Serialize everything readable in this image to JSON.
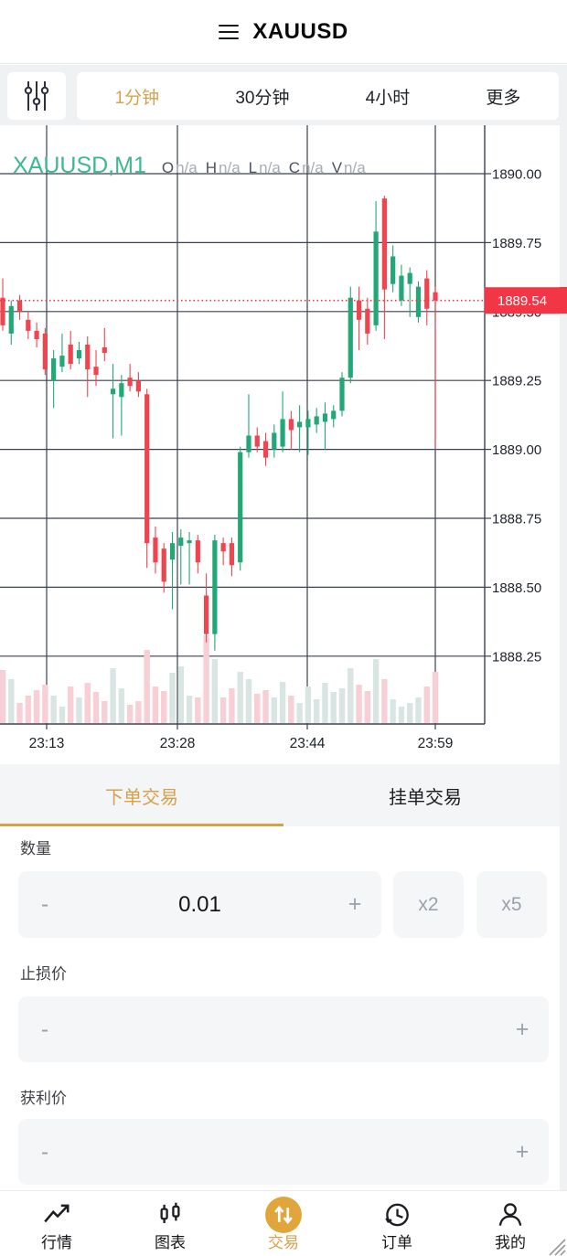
{
  "app": {
    "title": "XAUUSD",
    "menu_icon": "hamburger-menu-icon"
  },
  "colors": {
    "accent_gold": "#d7a14b",
    "nav_active_circle": "#e0a63c",
    "candle_up": "#21a876",
    "candle_down": "#f0444f",
    "volume_up": "#d9e5e3",
    "volume_down": "#f8cfd4",
    "price_line_red": "#f23645",
    "grid": "#3a4150",
    "legend_green": "#3cba8e"
  },
  "toolbar": {
    "settings_icon": "sliders-icon",
    "timeframes": [
      {
        "label": "1分钟",
        "active": true
      },
      {
        "label": "30分钟",
        "active": false
      },
      {
        "label": "4小时",
        "active": false
      },
      {
        "label": "更多",
        "active": false
      }
    ]
  },
  "chart": {
    "legend": {
      "symbol": "XAUUSD,M1",
      "ohlc": [
        {
          "key": "O",
          "value": "n/a"
        },
        {
          "key": "H",
          "value": "n/a"
        },
        {
          "key": "L",
          "value": "n/a"
        },
        {
          "key": "C",
          "value": "n/a"
        },
        {
          "key": "V",
          "value": "n/a"
        }
      ]
    },
    "price_labels": [
      "1890.00",
      "1889.75",
      "1889.50",
      "1889.25",
      "1889.00",
      "1888.75",
      "1888.50",
      "1888.25"
    ],
    "current_price_label": "1889.54",
    "time_labels": [
      "23:13",
      "23:28",
      "23:44",
      "23:59"
    ]
  },
  "chart_data": {
    "type": "candlestick",
    "symbol": "XAUUSD",
    "interval": "1 minute",
    "time_start": "23:08",
    "x_tick_labels": [
      "23:13",
      "23:28",
      "23:44",
      "23:59"
    ],
    "ylim": [
      1888.0,
      1890.18
    ],
    "y_gridlines": [
      1890.0,
      1889.75,
      1889.5,
      1889.25,
      1889.0,
      1888.75,
      1888.5,
      1888.25
    ],
    "current_price": 1889.54,
    "candles_ohlc": [
      [
        1889.55,
        1889.62,
        1889.43,
        1889.45
      ],
      [
        1889.42,
        1889.54,
        1889.38,
        1889.52
      ],
      [
        1889.54,
        1889.56,
        1889.47,
        1889.5
      ],
      [
        1889.47,
        1889.5,
        1889.4,
        1889.43
      ],
      [
        1889.43,
        1889.46,
        1889.37,
        1889.4
      ],
      [
        1889.42,
        1889.44,
        1889.27,
        1889.29
      ],
      [
        1889.25,
        1889.36,
        1889.15,
        1889.33
      ],
      [
        1889.3,
        1889.42,
        1889.28,
        1889.34
      ],
      [
        1889.38,
        1889.43,
        1889.29,
        1889.31
      ],
      [
        1889.33,
        1889.39,
        1889.31,
        1889.36
      ],
      [
        1889.38,
        1889.41,
        1889.19,
        1889.29
      ],
      [
        1889.3,
        1889.36,
        1889.23,
        1889.27
      ],
      [
        1889.37,
        1889.44,
        1889.32,
        1889.35
      ],
      [
        1889.2,
        1889.31,
        1889.04,
        1889.22
      ],
      [
        1889.19,
        1889.27,
        1889.05,
        1889.24
      ],
      [
        1889.26,
        1889.31,
        1889.21,
        1889.23
      ],
      [
        1889.25,
        1889.28,
        1889.19,
        1889.21
      ],
      [
        1889.2,
        1889.22,
        1888.57,
        1888.66
      ],
      [
        1888.68,
        1888.72,
        1888.55,
        1888.59
      ],
      [
        1888.64,
        1888.66,
        1888.48,
        1888.52
      ],
      [
        1888.6,
        1888.7,
        1888.42,
        1888.66
      ],
      [
        1888.65,
        1888.71,
        1888.51,
        1888.68
      ],
      [
        1888.66,
        1888.7,
        1888.51,
        1888.67
      ],
      [
        1888.67,
        1888.69,
        1888.55,
        1888.59
      ],
      [
        1888.47,
        1888.55,
        1888.3,
        1888.33
      ],
      [
        1888.33,
        1888.69,
        1888.27,
        1888.67
      ],
      [
        1888.66,
        1888.68,
        1888.58,
        1888.63
      ],
      [
        1888.66,
        1888.68,
        1888.54,
        1888.58
      ],
      [
        1888.59,
        1889.01,
        1888.56,
        1888.99
      ],
      [
        1888.99,
        1889.2,
        1888.97,
        1889.05
      ],
      [
        1889.05,
        1889.08,
        1888.99,
        1889.01
      ],
      [
        1889.03,
        1889.06,
        1888.94,
        1888.97
      ],
      [
        1889.0,
        1889.09,
        1888.97,
        1889.06
      ],
      [
        1889.01,
        1889.21,
        1888.99,
        1889.11
      ],
      [
        1889.11,
        1889.14,
        1889.0,
        1889.07
      ],
      [
        1889.08,
        1889.16,
        1888.99,
        1889.1
      ],
      [
        1889.08,
        1889.14,
        1888.98,
        1889.11
      ],
      [
        1889.09,
        1889.15,
        1889.06,
        1889.12
      ],
      [
        1889.1,
        1889.17,
        1889.0,
        1889.13
      ],
      [
        1889.11,
        1889.16,
        1889.08,
        1889.14
      ],
      [
        1889.14,
        1889.28,
        1889.12,
        1889.26
      ],
      [
        1889.26,
        1889.59,
        1889.24,
        1889.55
      ],
      [
        1889.54,
        1889.59,
        1889.36,
        1889.47
      ],
      [
        1889.51,
        1889.55,
        1889.38,
        1889.42
      ],
      [
        1889.45,
        1889.9,
        1889.43,
        1889.79
      ],
      [
        1889.91,
        1889.92,
        1889.4,
        1889.58
      ],
      [
        1889.6,
        1889.74,
        1889.57,
        1889.7
      ],
      [
        1889.54,
        1889.67,
        1889.52,
        1889.63
      ],
      [
        1889.6,
        1889.66,
        1889.48,
        1889.64
      ],
      [
        1889.48,
        1889.61,
        1889.46,
        1889.59
      ],
      [
        1889.62,
        1889.65,
        1889.45,
        1889.51
      ],
      [
        1889.57,
        1889.59,
        1889.0,
        1889.54
      ]
    ],
    "volumes_rel": [
      58,
      48,
      22,
      30,
      36,
      42,
      30,
      18,
      40,
      28,
      44,
      34,
      24,
      60,
      38,
      20,
      24,
      80,
      40,
      35,
      55,
      62,
      30,
      28,
      96,
      70,
      28,
      38,
      56,
      48,
      32,
      36,
      28,
      45,
      30,
      22,
      40,
      26,
      44,
      34,
      38,
      60,
      42,
      35,
      70,
      48,
      26,
      18,
      22,
      28,
      40,
      56
    ]
  },
  "trade": {
    "tabs": [
      {
        "label": "下单交易",
        "active": true
      },
      {
        "label": "挂单交易",
        "active": false
      }
    ],
    "quantity": {
      "label": "数量",
      "minus": "-",
      "plus": "+",
      "value": "0.01",
      "multipliers": [
        "x2",
        "x5"
      ]
    },
    "stop_loss": {
      "label": "止损价",
      "minus": "-",
      "plus": "+",
      "value": ""
    },
    "take_profit": {
      "label": "获利价",
      "minus": "-",
      "plus": "+",
      "value": ""
    }
  },
  "nav": {
    "items": [
      {
        "label": "行情",
        "icon": "trend-up-icon",
        "active": false
      },
      {
        "label": "图表",
        "icon": "candles-icon",
        "active": false
      },
      {
        "label": "交易",
        "icon": "transfer-icon",
        "active": true
      },
      {
        "label": "订单",
        "icon": "history-icon",
        "active": false
      },
      {
        "label": "我的",
        "icon": "user-icon",
        "active": false
      }
    ]
  }
}
